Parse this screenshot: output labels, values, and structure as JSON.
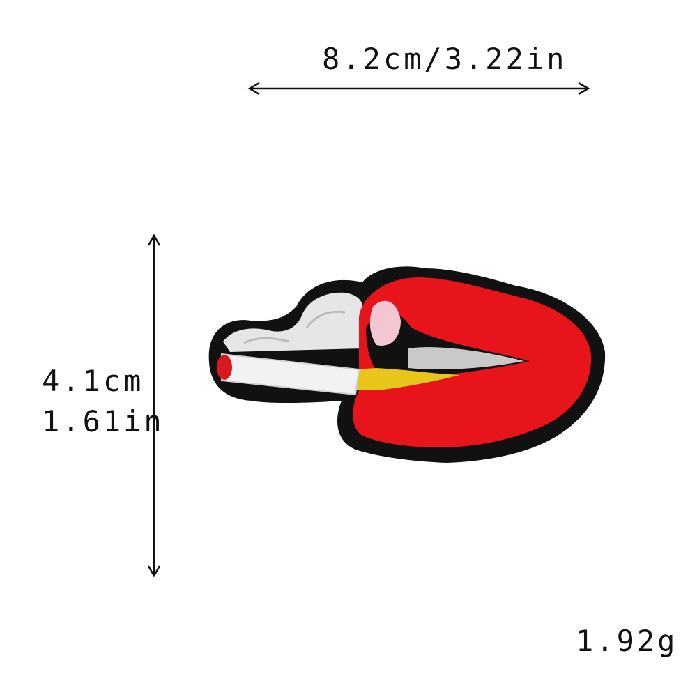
{
  "dimensions": {
    "width_label": "8.2cm/3.22in",
    "height_cm_label": "4.1cm",
    "height_in_label": "1.61in",
    "weight_label": "1.92g"
  },
  "product": {
    "patch_icon": "lips-with-cigarette-patch",
    "colors": {
      "lips": "#e8141b",
      "outline": "#111111",
      "cigarette": "#f2f2f2",
      "smoke": "#e6e6e6",
      "ember": "#d81920",
      "filter": "#e8c51a",
      "teeth": "#c9c9c9"
    }
  }
}
